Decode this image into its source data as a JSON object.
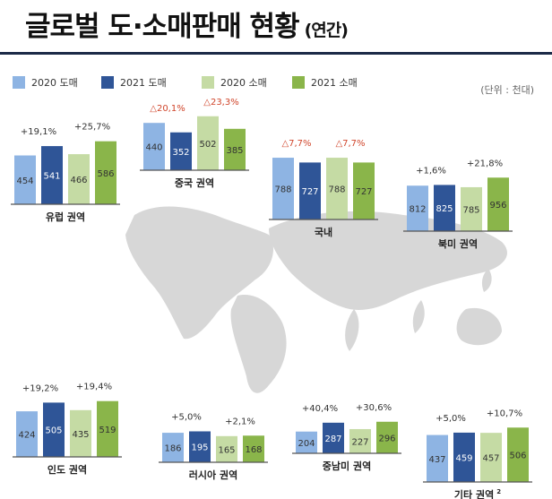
{
  "title": "글로벌 도·소매판매 현황",
  "title_suffix": "(연간)",
  "unit_label": "(단위 : 천대)",
  "footnote": "",
  "legend": [
    {
      "label": "2020 도매",
      "color": "#8eb4e3"
    },
    {
      "label": "2021 도매",
      "color": "#2f5597"
    },
    {
      "label": "2020 소매",
      "color": "#c5dba4"
    },
    {
      "label": "2021 소매",
      "color": "#8ab54a"
    }
  ],
  "chart_data": [
    {
      "type": "bar",
      "region": "유럽 권역",
      "series": [
        "2020 도매",
        "2021 도매",
        "2020 소매",
        "2021 소매"
      ],
      "values": [
        454,
        541,
        466,
        586
      ],
      "changes": [
        "+19,1%",
        "+25,7%"
      ],
      "change_negative": [
        false,
        false
      ]
    },
    {
      "type": "bar",
      "region": "중국 권역",
      "series": [
        "2020 도매",
        "2021 도매",
        "2020 소매",
        "2021 소매"
      ],
      "values": [
        440,
        352,
        502,
        385
      ],
      "changes": [
        "△20,1%",
        "△23,3%"
      ],
      "change_negative": [
        true,
        true
      ]
    },
    {
      "type": "bar",
      "region": "국내",
      "series": [
        "2020 도매",
        "2021 도매",
        "2020 소매",
        "2021 소매"
      ],
      "values": [
        788,
        727,
        788,
        727
      ],
      "changes": [
        "△7,7%",
        "△7,7%"
      ],
      "change_negative": [
        true,
        true
      ]
    },
    {
      "type": "bar",
      "region": "북미 권역",
      "series": [
        "2020 도매",
        "2021 도매",
        "2020 소매",
        "2021 소매"
      ],
      "values": [
        812,
        825,
        785,
        956
      ],
      "changes": [
        "+1,6%",
        "+21,8%"
      ],
      "change_negative": [
        false,
        false
      ]
    },
    {
      "type": "bar",
      "region": "인도 권역",
      "series": [
        "2020 도매",
        "2021 도매",
        "2020 소매",
        "2021 소매"
      ],
      "values": [
        424,
        505,
        435,
        519
      ],
      "changes": [
        "+19,2%",
        "+19,4%"
      ],
      "change_negative": [
        false,
        false
      ]
    },
    {
      "type": "bar",
      "region": "러시아 권역",
      "series": [
        "2020 도매",
        "2021 도매",
        "2020 소매",
        "2021 소매"
      ],
      "values": [
        186,
        195,
        165,
        168
      ],
      "changes": [
        "+5,0%",
        "+2,1%"
      ],
      "change_negative": [
        false,
        false
      ]
    },
    {
      "type": "bar",
      "region": "중남미 권역",
      "series": [
        "2020 도매",
        "2021 도매",
        "2020 소매",
        "2021 소매"
      ],
      "values": [
        204,
        287,
        227,
        296
      ],
      "changes": [
        "+40,4%",
        "+30,6%"
      ],
      "change_negative": [
        false,
        false
      ]
    },
    {
      "type": "bar",
      "region": "기타 권역",
      "region_note": "2",
      "series": [
        "2020 도매",
        "2021 도매",
        "2020 소매",
        "2021 소매"
      ],
      "values": [
        437,
        459,
        457,
        506
      ],
      "changes": [
        "+5,0%",
        "+10,7%"
      ],
      "change_negative": [
        false,
        false
      ]
    }
  ]
}
